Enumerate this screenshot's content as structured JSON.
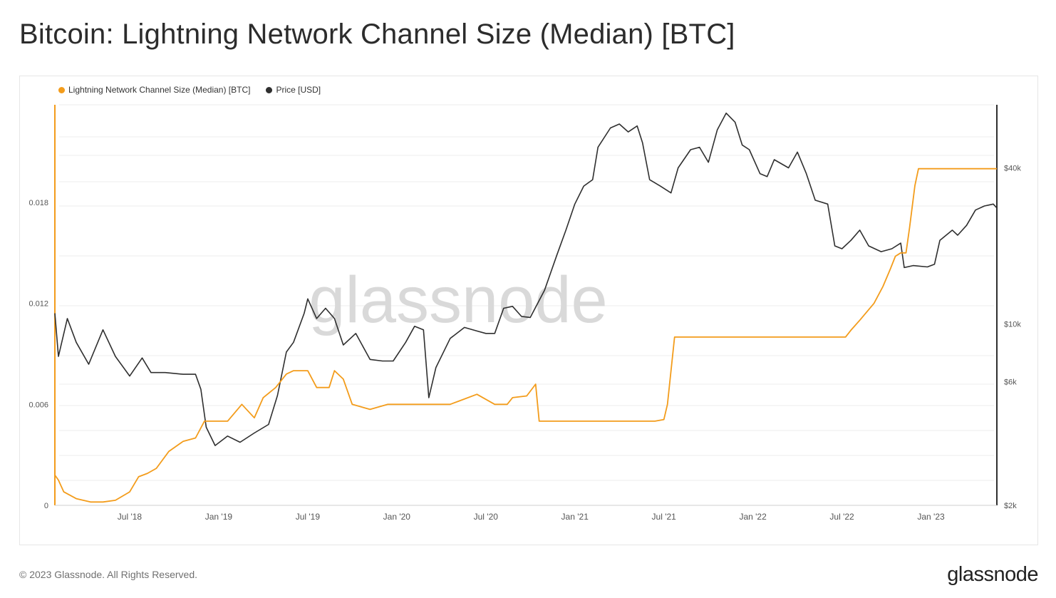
{
  "title": "Bitcoin: Lightning Network Channel Size (Median) [BTC]",
  "footer": "© 2023 Glassnode. All Rights Reserved.",
  "brand": "glassnode",
  "watermark": "glassnode",
  "colors": {
    "ln": "#f39c1b",
    "price": "#2f2f2f",
    "grid": "#ececec",
    "axis_text": "#555555"
  },
  "chart_data": {
    "type": "line",
    "legend_placement": "top-left",
    "grid": true,
    "x_ticks": [
      "Jul '18",
      "Jan '19",
      "Jul '19",
      "Jan '20",
      "Jul '20",
      "Jan '21",
      "Jul '21",
      "Jan '22",
      "Jul '22",
      "Jan '23"
    ],
    "x_range": [
      2018.08,
      2023.37
    ],
    "y_left": {
      "ticks": [
        "0",
        "0.006",
        "0.012",
        "0.018"
      ],
      "ylim": [
        0,
        0.0238
      ]
    },
    "y_right": {
      "scale": "log",
      "ticks": [
        "$2k",
        "$6k",
        "$10k",
        "$40k"
      ],
      "tick_values": [
        2000,
        6000,
        10000,
        40000
      ],
      "ylim": [
        2000,
        70000
      ]
    },
    "series": [
      {
        "name": "Lightning Network Channel Size (Median) [BTC]",
        "axis": "left",
        "points": [
          [
            2018.08,
            0.0018
          ],
          [
            2018.1,
            0.0015
          ],
          [
            2018.13,
            0.0008
          ],
          [
            2018.2,
            0.0004
          ],
          [
            2018.28,
            0.0002
          ],
          [
            2018.35,
            0.0002
          ],
          [
            2018.42,
            0.0003
          ],
          [
            2018.5,
            0.0008
          ],
          [
            2018.55,
            0.0017
          ],
          [
            2018.6,
            0.0019
          ],
          [
            2018.65,
            0.0022
          ],
          [
            2018.72,
            0.0032
          ],
          [
            2018.8,
            0.0038
          ],
          [
            2018.87,
            0.004
          ],
          [
            2018.92,
            0.005
          ],
          [
            2019.05,
            0.005
          ],
          [
            2019.13,
            0.006
          ],
          [
            2019.2,
            0.0052
          ],
          [
            2019.25,
            0.0064
          ],
          [
            2019.32,
            0.007
          ],
          [
            2019.38,
            0.0078
          ],
          [
            2019.42,
            0.008
          ],
          [
            2019.5,
            0.008
          ],
          [
            2019.55,
            0.007
          ],
          [
            2019.62,
            0.007
          ],
          [
            2019.65,
            0.008
          ],
          [
            2019.7,
            0.0075
          ],
          [
            2019.75,
            0.006
          ],
          [
            2019.85,
            0.0057
          ],
          [
            2019.95,
            0.006
          ],
          [
            2020.05,
            0.006
          ],
          [
            2020.15,
            0.006
          ],
          [
            2020.3,
            0.006
          ],
          [
            2020.35,
            0.0062
          ],
          [
            2020.45,
            0.0066
          ],
          [
            2020.55,
            0.006
          ],
          [
            2020.62,
            0.006
          ],
          [
            2020.65,
            0.0064
          ],
          [
            2020.73,
            0.0065
          ],
          [
            2020.78,
            0.0072
          ],
          [
            2020.8,
            0.005
          ],
          [
            2021.05,
            0.005
          ],
          [
            2021.3,
            0.005
          ],
          [
            2021.45,
            0.005
          ],
          [
            2021.5,
            0.0051
          ],
          [
            2021.52,
            0.006
          ],
          [
            2021.54,
            0.008
          ],
          [
            2021.56,
            0.01
          ],
          [
            2021.8,
            0.01
          ],
          [
            2022.1,
            0.01
          ],
          [
            2022.3,
            0.01
          ],
          [
            2022.52,
            0.01
          ],
          [
            2022.55,
            0.0104
          ],
          [
            2022.6,
            0.011
          ],
          [
            2022.68,
            0.012
          ],
          [
            2022.73,
            0.013
          ],
          [
            2022.77,
            0.014
          ],
          [
            2022.8,
            0.0148
          ],
          [
            2022.83,
            0.015
          ],
          [
            2022.86,
            0.015
          ],
          [
            2022.88,
            0.0165
          ],
          [
            2022.91,
            0.019
          ],
          [
            2022.93,
            0.02
          ],
          [
            2023.0,
            0.02
          ],
          [
            2023.2,
            0.02
          ],
          [
            2023.37,
            0.02
          ]
        ]
      },
      {
        "name": "Price [USD]",
        "axis": "right",
        "points": [
          [
            2018.08,
            11000
          ],
          [
            2018.1,
            7500
          ],
          [
            2018.15,
            10500
          ],
          [
            2018.2,
            8500
          ],
          [
            2018.27,
            7000
          ],
          [
            2018.35,
            9500
          ],
          [
            2018.42,
            7500
          ],
          [
            2018.5,
            6300
          ],
          [
            2018.57,
            7400
          ],
          [
            2018.62,
            6500
          ],
          [
            2018.7,
            6500
          ],
          [
            2018.8,
            6400
          ],
          [
            2018.87,
            6400
          ],
          [
            2018.9,
            5600
          ],
          [
            2018.93,
            4000
          ],
          [
            2018.98,
            3400
          ],
          [
            2019.05,
            3700
          ],
          [
            2019.12,
            3500
          ],
          [
            2019.2,
            3800
          ],
          [
            2019.28,
            4100
          ],
          [
            2019.33,
            5300
          ],
          [
            2019.38,
            7800
          ],
          [
            2019.42,
            8500
          ],
          [
            2019.48,
            11000
          ],
          [
            2019.5,
            12500
          ],
          [
            2019.55,
            10500
          ],
          [
            2019.6,
            11500
          ],
          [
            2019.65,
            10500
          ],
          [
            2019.7,
            8300
          ],
          [
            2019.77,
            9200
          ],
          [
            2019.85,
            7300
          ],
          [
            2019.92,
            7200
          ],
          [
            2019.98,
            7200
          ],
          [
            2020.05,
            8500
          ],
          [
            2020.1,
            9800
          ],
          [
            2020.15,
            9500
          ],
          [
            2020.18,
            5200
          ],
          [
            2020.22,
            6800
          ],
          [
            2020.3,
            8800
          ],
          [
            2020.38,
            9700
          ],
          [
            2020.45,
            9400
          ],
          [
            2020.5,
            9200
          ],
          [
            2020.55,
            9200
          ],
          [
            2020.6,
            11500
          ],
          [
            2020.65,
            11700
          ],
          [
            2020.7,
            10700
          ],
          [
            2020.75,
            10600
          ],
          [
            2020.83,
            13500
          ],
          [
            2020.9,
            18500
          ],
          [
            2020.95,
            23000
          ],
          [
            2021.0,
            29000
          ],
          [
            2021.05,
            34000
          ],
          [
            2021.1,
            36000
          ],
          [
            2021.13,
            48000
          ],
          [
            2021.2,
            57000
          ],
          [
            2021.25,
            59000
          ],
          [
            2021.3,
            55000
          ],
          [
            2021.35,
            58000
          ],
          [
            2021.38,
            50000
          ],
          [
            2021.42,
            36000
          ],
          [
            2021.48,
            34000
          ],
          [
            2021.54,
            32000
          ],
          [
            2021.58,
            40000
          ],
          [
            2021.65,
            47000
          ],
          [
            2021.7,
            48000
          ],
          [
            2021.75,
            42000
          ],
          [
            2021.8,
            56000
          ],
          [
            2021.85,
            65000
          ],
          [
            2021.9,
            60000
          ],
          [
            2021.94,
            49000
          ],
          [
            2021.98,
            47000
          ],
          [
            2022.04,
            38000
          ],
          [
            2022.08,
            37000
          ],
          [
            2022.12,
            43000
          ],
          [
            2022.2,
            40000
          ],
          [
            2022.25,
            46000
          ],
          [
            2022.3,
            38000
          ],
          [
            2022.35,
            30000
          ],
          [
            2022.42,
            29000
          ],
          [
            2022.46,
            20000
          ],
          [
            2022.5,
            19500
          ],
          [
            2022.55,
            21000
          ],
          [
            2022.6,
            23000
          ],
          [
            2022.65,
            20000
          ],
          [
            2022.72,
            19000
          ],
          [
            2022.78,
            19500
          ],
          [
            2022.83,
            20500
          ],
          [
            2022.85,
            16500
          ],
          [
            2022.9,
            16800
          ],
          [
            2022.98,
            16600
          ],
          [
            2023.02,
            17000
          ],
          [
            2023.05,
            21000
          ],
          [
            2023.12,
            23000
          ],
          [
            2023.15,
            22000
          ],
          [
            2023.2,
            24000
          ],
          [
            2023.25,
            27500
          ],
          [
            2023.3,
            28500
          ],
          [
            2023.35,
            29000
          ],
          [
            2023.37,
            28000
          ]
        ]
      }
    ]
  }
}
